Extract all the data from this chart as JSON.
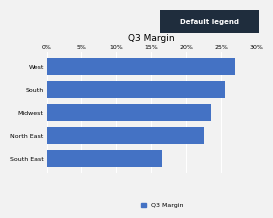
{
  "title": "Q3 Margin",
  "categories": [
    "West",
    "South",
    "Midwest",
    "North East",
    "South East"
  ],
  "values": [
    0.27,
    0.255,
    0.235,
    0.225,
    0.165
  ],
  "bar_color": "#4472C4",
  "xlim": [
    0,
    0.3
  ],
  "xticks": [
    0,
    0.05,
    0.1,
    0.15,
    0.2,
    0.25,
    0.3
  ],
  "legend_label": "Q3 Margin",
  "title_fontsize": 6.5,
  "tick_fontsize": 4.5,
  "legend_fontsize": 4.5,
  "bg_color": "#F2F2F2",
  "plot_bg_color": "#F2F2F2",
  "grid_color": "#FFFFFF",
  "header_bg": "#1F2D3D",
  "header_text": "Default legend",
  "header_text_color": "#FFFFFF",
  "bar_height": 0.75
}
